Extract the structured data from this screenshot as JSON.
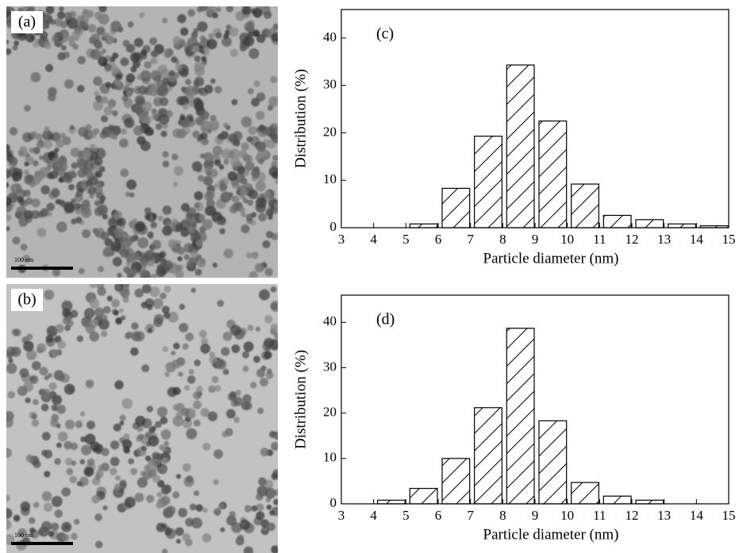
{
  "images": [
    {
      "label": "(a)",
      "scale_label": "100 nm"
    },
    {
      "label": "(b)",
      "scale_label": "100 nm"
    }
  ],
  "chart_data": [
    {
      "type": "histogram",
      "label": "(c)",
      "xlabel": "Particle diameter (nm)",
      "ylabel": "Distribution (%)",
      "bins": [
        5,
        6,
        7,
        8,
        9,
        10,
        11,
        12,
        13,
        14,
        15
      ],
      "values": [
        0.8,
        8.3,
        19.3,
        34.3,
        22.5,
        9.2,
        2.6,
        1.7,
        0.8,
        0.4
      ],
      "xlim": [
        3,
        15
      ],
      "ylim": [
        0,
        46
      ],
      "xticks": [
        3,
        4,
        5,
        6,
        7,
        8,
        9,
        10,
        11,
        12,
        13,
        14,
        15
      ],
      "yticks": [
        0,
        10,
        20,
        30,
        40
      ],
      "color": "#ffffff",
      "hatch": true
    },
    {
      "type": "histogram",
      "label": "(d)",
      "xlabel": "Particle diameter (nm)",
      "ylabel": "Distribution (%)",
      "bins": [
        4,
        5,
        6,
        7,
        8,
        9,
        10,
        11,
        12,
        13
      ],
      "values": [
        0.8,
        3.4,
        10.0,
        21.2,
        38.7,
        18.3,
        4.7,
        1.7,
        0.8
      ],
      "xlim": [
        3,
        15
      ],
      "ylim": [
        0,
        46
      ],
      "xticks": [
        3,
        4,
        5,
        6,
        7,
        8,
        9,
        10,
        11,
        12,
        13,
        14,
        15
      ],
      "yticks": [
        0,
        10,
        20,
        30,
        40
      ],
      "color": "#ffffff",
      "hatch": true
    }
  ]
}
